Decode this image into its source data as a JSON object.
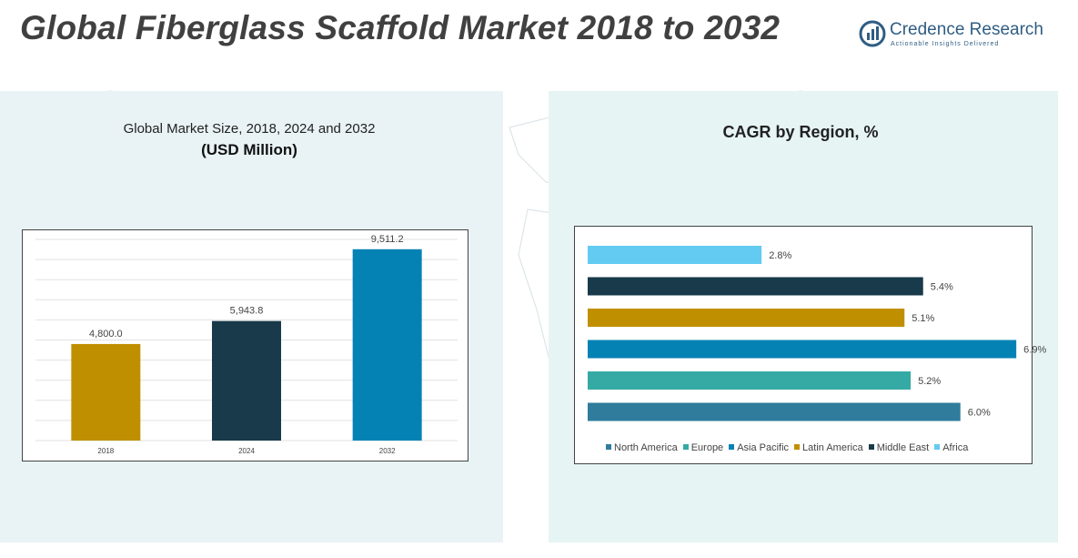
{
  "header": {
    "title": "Global Fiberglass Scaffold Market 2018 to 2032",
    "logo_name": "Credence Research",
    "logo_tagline": "Actionable Insights Delivered"
  },
  "left_panel": {
    "subtitle": "Global Market Size, 2018, 2024 and 2032",
    "unit": "(USD Million)"
  },
  "right_panel": {
    "title": "CAGR by Region, %"
  },
  "colors": {
    "gold": "#c08f00",
    "dark_teal": "#183a4a",
    "blue": "#0582b4",
    "teal": "#35aaa5",
    "steel_blue": "#2f7c9c",
    "sky": "#63cbf2"
  },
  "chart_data": [
    {
      "type": "bar",
      "categories": [
        "2018",
        "2024",
        "2032"
      ],
      "values": [
        4800.0,
        5943.8,
        9511.2
      ],
      "value_labels": [
        "4,800.0",
        "5,943.8",
        "9,511.2"
      ],
      "bar_colors": [
        "#c08f00",
        "#183a4a",
        "#0582b4"
      ],
      "ylim": [
        0,
        10000
      ],
      "grid": true
    },
    {
      "type": "bar",
      "orientation": "horizontal",
      "categories": [
        "North America",
        "Europe",
        "Asia Pacific",
        "Latin America",
        "Middle East",
        "Africa"
      ],
      "values": [
        6.0,
        5.2,
        6.9,
        5.1,
        5.4,
        2.8
      ],
      "value_labels": [
        "6.0%",
        "5.2%",
        "6.9%",
        "5.1%",
        "5.4%",
        "2.8%"
      ],
      "bar_colors": [
        "#2f7c9c",
        "#35aaa5",
        "#0582b4",
        "#c08f00",
        "#183a4a",
        "#63cbf2"
      ],
      "xlim": [
        0,
        7
      ],
      "legend": "bottom"
    }
  ]
}
